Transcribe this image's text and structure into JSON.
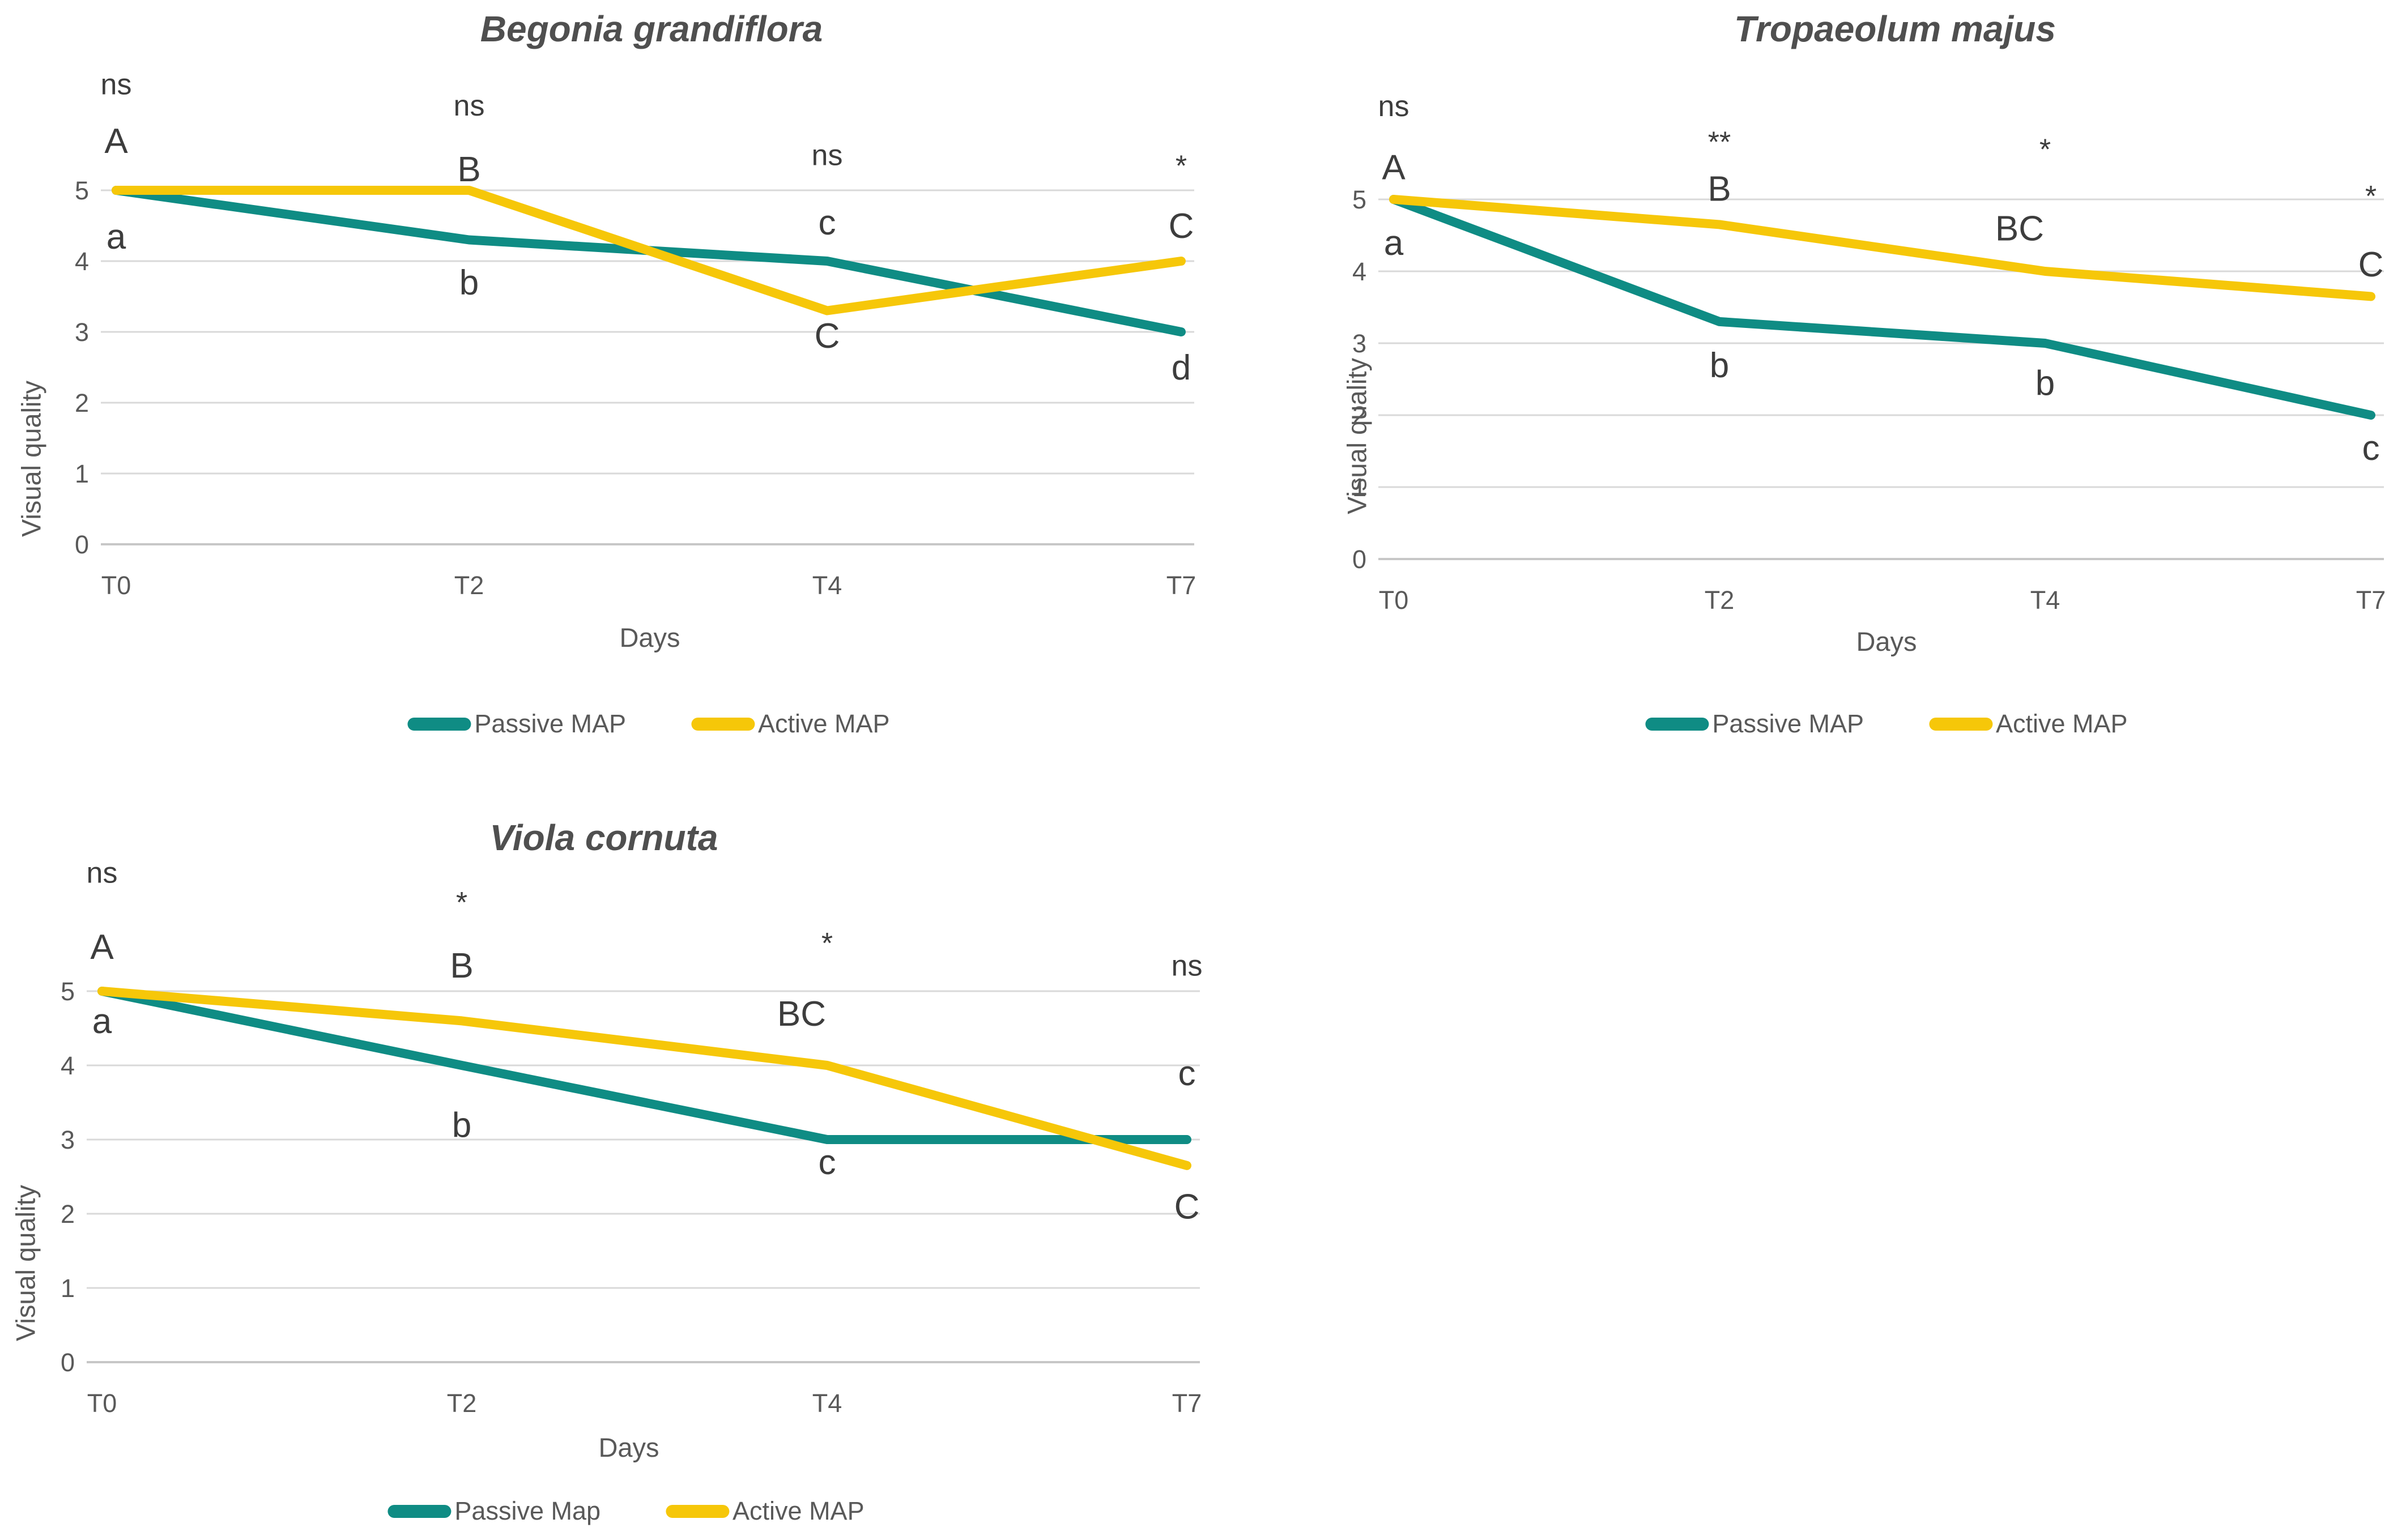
{
  "colors": {
    "passive": "#0F8C84",
    "active": "#F6C709",
    "grid": "#D9D9D9",
    "axis_text": "#595959",
    "annotation_text": "#3D3D3D",
    "title_text": "#4F4F4F",
    "background": "#FFFFFF"
  },
  "chart_data": [
    {
      "type": "line",
      "title": "Begonia grandiflora",
      "xlabel": "Days",
      "ylabel": "Visual quality",
      "x": [
        "T0",
        "T2",
        "T4",
        "T7"
      ],
      "y_ticks": [
        0,
        1,
        2,
        3,
        4,
        5
      ],
      "ylim": [
        0,
        5
      ],
      "grid": true,
      "legend_position": "bottom",
      "series": [
        {
          "name": "Passive MAP",
          "color_key": "passive",
          "values": [
            5,
            4.3,
            4,
            3
          ]
        },
        {
          "name": "Active MAP",
          "color_key": "active",
          "values": [
            5,
            5,
            3.3,
            4
          ]
        }
      ],
      "annotations": [
        {
          "x": "T0",
          "labels": [
            {
              "text": "ns",
              "kind": "sig",
              "y": 6.5
            },
            {
              "text": "A",
              "kind": "letter",
              "y": 5.7
            },
            {
              "text": "a",
              "kind": "letter",
              "y": 4.35
            }
          ]
        },
        {
          "x": "T2",
          "labels": [
            {
              "text": "ns",
              "kind": "sig",
              "y": 6.2
            },
            {
              "text": "B",
              "kind": "letter",
              "y": 5.3
            },
            {
              "text": "b",
              "kind": "letter",
              "y": 3.7
            }
          ]
        },
        {
          "x": "T4",
          "labels": [
            {
              "text": "ns",
              "kind": "sig",
              "y": 5.5
            },
            {
              "text": "c",
              "kind": "letter",
              "y": 4.55
            },
            {
              "text": "C",
              "kind": "letter",
              "y": 2.95
            }
          ]
        },
        {
          "x": "T7",
          "labels": [
            {
              "text": "*",
              "kind": "sig",
              "y": 5.35
            },
            {
              "text": "C",
              "kind": "letter",
              "y": 4.5
            },
            {
              "text": "d",
              "kind": "letter",
              "y": 2.5
            }
          ]
        }
      ]
    },
    {
      "type": "line",
      "title": "Tropaeolum majus",
      "xlabel": "Days",
      "ylabel": "Visual quality",
      "x": [
        "T0",
        "T2",
        "T4",
        "T7"
      ],
      "y_ticks": [
        0,
        1,
        2,
        3,
        4,
        5
      ],
      "ylim": [
        0,
        5
      ],
      "grid": true,
      "legend_position": "bottom",
      "series": [
        {
          "name": "Passive MAP",
          "color_key": "passive",
          "values": [
            5,
            3.3,
            3,
            2
          ]
        },
        {
          "name": "Active MAP",
          "color_key": "active",
          "values": [
            5,
            4.65,
            4,
            3.65
          ]
        }
      ],
      "annotations": [
        {
          "x": "T0",
          "labels": [
            {
              "text": "ns",
              "kind": "sig",
              "y": 6.3
            },
            {
              "text": "A",
              "kind": "letter",
              "y": 5.45
            },
            {
              "text": "a",
              "kind": "letter",
              "y": 4.4
            }
          ]
        },
        {
          "x": "T2",
          "labels": [
            {
              "text": "**",
              "kind": "sig",
              "y": 5.8
            },
            {
              "text": "B",
              "kind": "letter",
              "y": 5.15
            },
            {
              "text": "b",
              "kind": "letter",
              "y": 2.7
            }
          ]
        },
        {
          "x": "T4",
          "labels": [
            {
              "text": "*",
              "kind": "sig",
              "y": 5.7
            },
            {
              "text": "BC",
              "kind": "letter",
              "y": 4.6,
              "dx": -45
            },
            {
              "text": "b",
              "kind": "letter",
              "y": 2.45
            }
          ]
        },
        {
          "x": "T7",
          "labels": [
            {
              "text": "*",
              "kind": "sig",
              "y": 5.05
            },
            {
              "text": "C",
              "kind": "letter",
              "y": 4.1
            },
            {
              "text": "c",
              "kind": "letter",
              "y": 1.55
            }
          ]
        }
      ]
    },
    {
      "type": "line",
      "title": "Viola cornuta",
      "xlabel": "Days",
      "ylabel": "Visual quality",
      "x": [
        "T0",
        "T2",
        "T4",
        "T7"
      ],
      "y_ticks": [
        0,
        1,
        2,
        3,
        4,
        5
      ],
      "ylim": [
        0,
        5
      ],
      "grid": true,
      "legend_position": "bottom",
      "series": [
        {
          "name": "Passive Map",
          "color_key": "passive",
          "values": [
            5,
            4,
            3,
            3
          ]
        },
        {
          "name": "Active MAP",
          "color_key": "active",
          "values": [
            5,
            4.6,
            4,
            2.65
          ]
        }
      ],
      "annotations": [
        {
          "x": "T0",
          "labels": [
            {
              "text": "ns",
              "kind": "sig",
              "y": 6.6
            },
            {
              "text": "A",
              "kind": "letter",
              "y": 5.6
            },
            {
              "text": "a",
              "kind": "letter",
              "y": 4.6
            }
          ]
        },
        {
          "x": "T2",
          "labels": [
            {
              "text": "*",
              "kind": "sig",
              "y": 6.2
            },
            {
              "text": "B",
              "kind": "letter",
              "y": 5.35
            },
            {
              "text": "b",
              "kind": "letter",
              "y": 3.2
            }
          ]
        },
        {
          "x": "T4",
          "labels": [
            {
              "text": "*",
              "kind": "sig",
              "y": 5.65
            },
            {
              "text": "BC",
              "kind": "letter",
              "y": 4.7,
              "dx": -45
            },
            {
              "text": "c",
              "kind": "letter",
              "y": 2.7
            }
          ]
        },
        {
          "x": "T7",
          "labels": [
            {
              "text": "ns",
              "kind": "sig",
              "y": 5.35
            },
            {
              "text": "c",
              "kind": "letter",
              "y": 3.9
            },
            {
              "text": "C",
              "kind": "letter",
              "y": 2.1
            }
          ]
        }
      ]
    }
  ]
}
